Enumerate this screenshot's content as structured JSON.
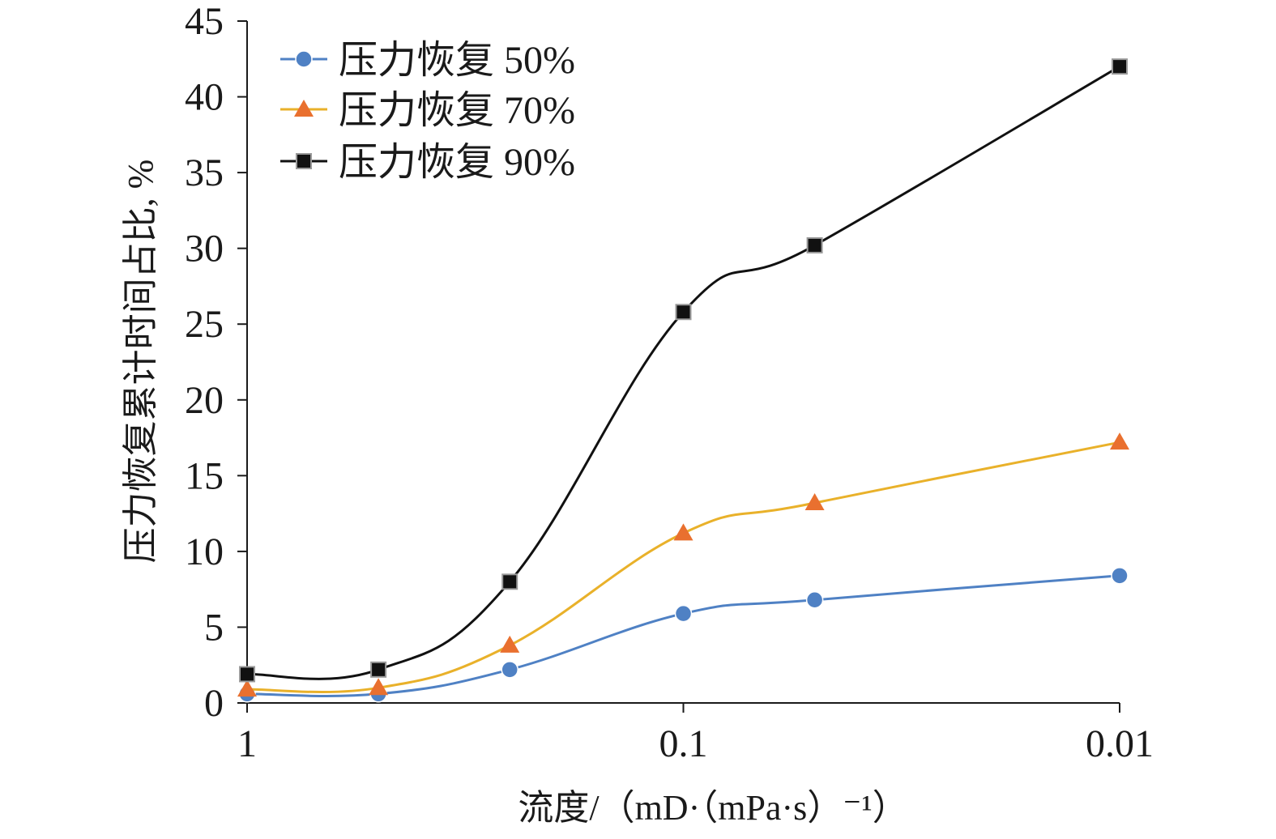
{
  "chart_data": {
    "type": "line",
    "title": "",
    "xlabel": "流度/（mD·（mPa·s）⁻¹）",
    "ylabel": "压力恢复累计时间占比, %",
    "x_scale": "log-reversed",
    "x": [
      1,
      0.5,
      0.25,
      0.1,
      0.05,
      0.01
    ],
    "x_ticks": [
      1,
      0.1,
      0.01
    ],
    "x_tick_labels": [
      "1",
      "0.1",
      "0.01"
    ],
    "ylim": [
      0,
      45
    ],
    "y_ticks": [
      0,
      5,
      10,
      15,
      20,
      25,
      30,
      35,
      40,
      45
    ],
    "y_tick_labels": [
      "0",
      "5",
      "10",
      "15",
      "20",
      "25",
      "30",
      "35",
      "40",
      "45"
    ],
    "grid": false,
    "legend_position": "top-left",
    "series": [
      {
        "name": "压力恢复 50%",
        "marker": "circle",
        "color": "#4f81c4",
        "values": [
          0.6,
          0.6,
          2.2,
          5.9,
          6.8,
          8.4
        ]
      },
      {
        "name": "压力恢复 70%",
        "marker": "triangle",
        "color": "#e9b12a",
        "marker_color": "#e9702f",
        "values": [
          0.9,
          1.0,
          3.8,
          11.2,
          13.2,
          17.2
        ]
      },
      {
        "name": "压力恢复 90%",
        "marker": "square",
        "color": "#111111",
        "values": [
          1.9,
          2.2,
          8.0,
          25.8,
          30.2,
          42.0
        ]
      }
    ]
  }
}
